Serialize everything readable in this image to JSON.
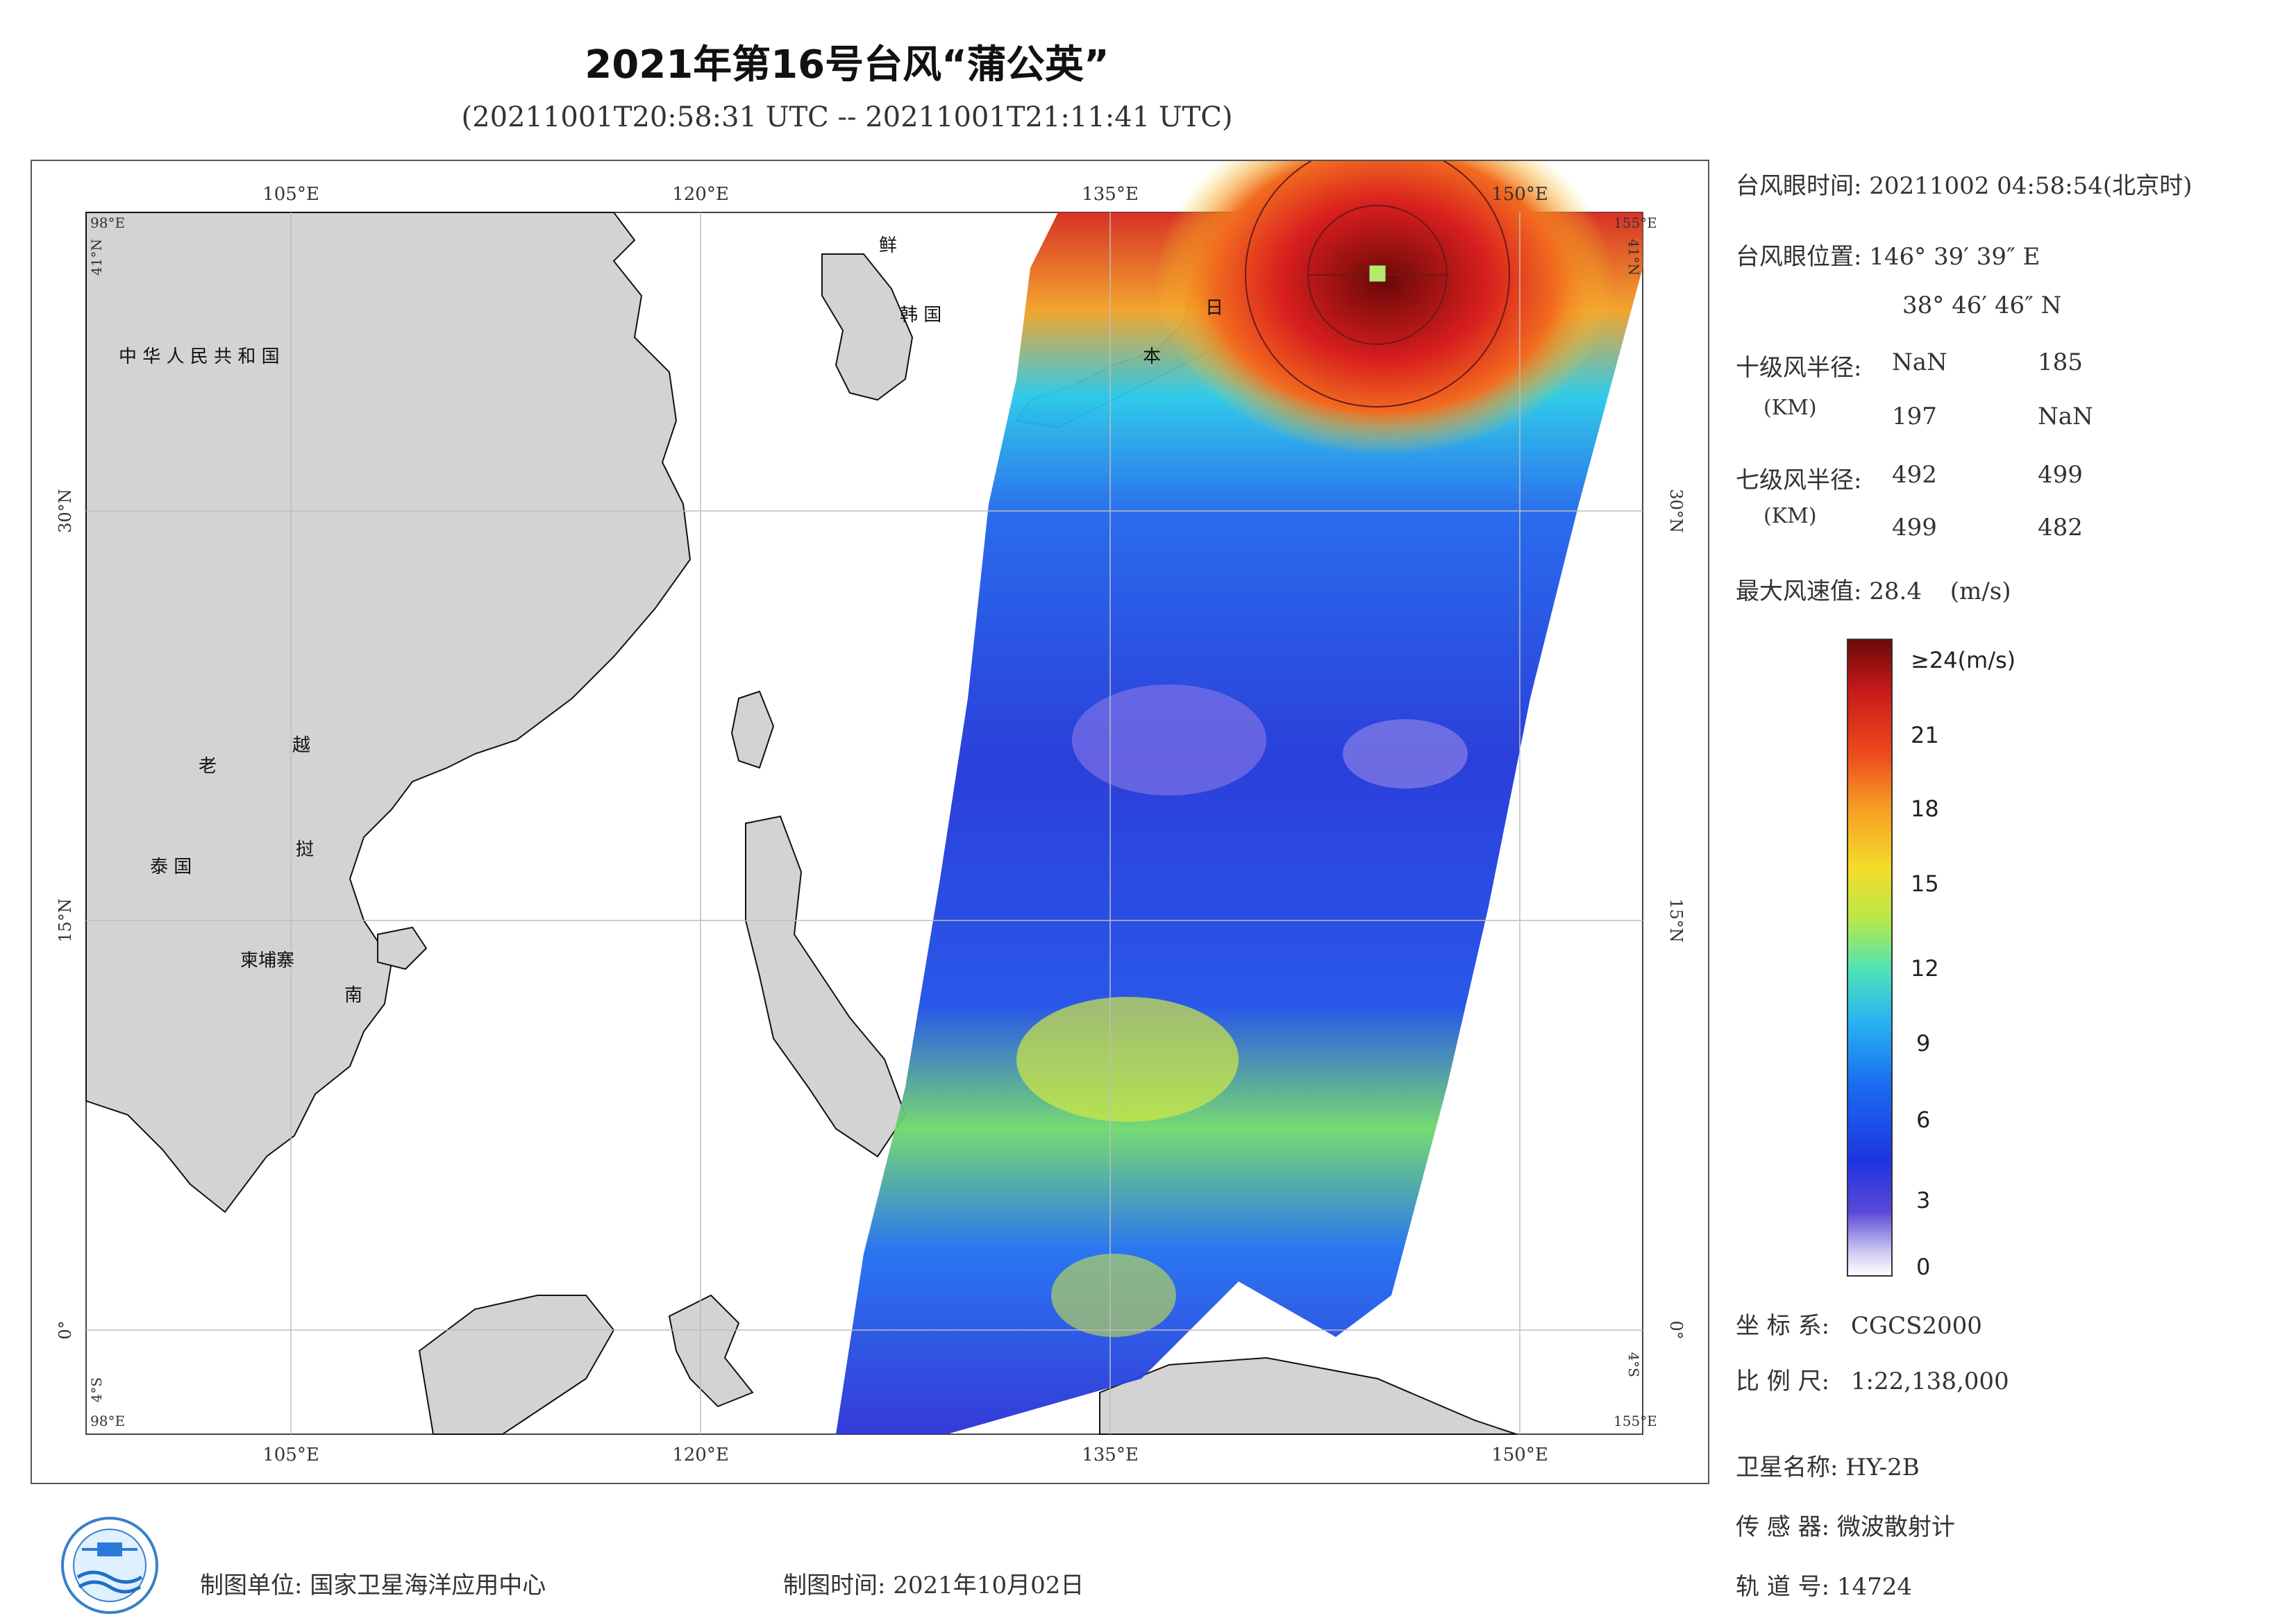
{
  "header": {
    "title": "2021年第16号台风“蒲公英”",
    "subtitle": "(20211001T20:58:31 UTC -- 20211001T21:11:41 UTC)"
  },
  "map": {
    "lon_top": [
      "105°E",
      "120°E",
      "135°E",
      "150°E"
    ],
    "lon_bottom": [
      "105°E",
      "120°E",
      "135°E",
      "150°E"
    ],
    "lat_left": [
      "30°N",
      "15°N",
      "0°"
    ],
    "lat_right": [
      "30°N",
      "15°N",
      "0°"
    ],
    "corner_tl_lon": "98°E",
    "corner_tl_lat": "41°N",
    "corner_tr_lon": "155°E",
    "corner_tr_lat": "41°N",
    "corner_bl_lon": "98°E",
    "corner_bl_lat": "4°S",
    "corner_br_lon": "155°E",
    "corner_br_lat": "4°S",
    "country_labels": {
      "china": "中 华 人 民 共 和 国",
      "korea_n": "鲜",
      "korea_s": "韩 国",
      "japan_1": "日",
      "japan_2": "本",
      "laos": "老",
      "vietnam_1": "越",
      "vietnam_2": "挝",
      "vietnam_3": "南",
      "thailand": "泰 国",
      "cambodia": "柬埔寨"
    }
  },
  "info": {
    "eye_time_label": "台风眼时间:",
    "eye_time_value": "20211002 04:58:54(北京时)",
    "eye_pos_label": "台风眼位置:",
    "eye_pos_lon": "146° 39′ 39″ E",
    "eye_pos_lat": "38° 46′ 46″ N",
    "r10_label": "十级风半径:",
    "r10_unit": "(KM)",
    "r10_values": [
      "NaN",
      "185",
      "197",
      "NaN"
    ],
    "r7_label": "七级风半径:",
    "r7_unit": "(KM)",
    "r7_values": [
      "492",
      "499",
      "499",
      "482"
    ],
    "max_wind_label": "最大风速值:",
    "max_wind_value": "28.4",
    "max_wind_unit": "(m/s)"
  },
  "colorbar": {
    "top_label": "≥24(m/s)",
    "ticks": [
      "21",
      "18",
      "15",
      "12",
      "9",
      "6",
      "3",
      "0"
    ],
    "colors": [
      "#7a0a0a",
      "#d81e1e",
      "#f06a1e",
      "#f5c82a",
      "#cfe83c",
      "#3fe0d0",
      "#1a8cf0",
      "#1e3ce0",
      "#3a2cd8",
      "#ffffff"
    ]
  },
  "meta": {
    "crs_label": "坐 标 系:",
    "crs_value": "CGCS2000",
    "scale_label": "比 例 尺:",
    "scale_value": "1:22,138,000",
    "satellite_label": "卫星名称:",
    "satellite_value": "HY-2B",
    "sensor_label": "传 感 器:",
    "sensor_value": "微波散射计",
    "orbit_label": "轨 道 号:",
    "orbit_value": "14724"
  },
  "footer": {
    "unit_label": "制图单位:",
    "unit_value": "国家卫星海洋应用中心",
    "date_label": "制图时间:",
    "date_value": "2021年10月02日"
  }
}
